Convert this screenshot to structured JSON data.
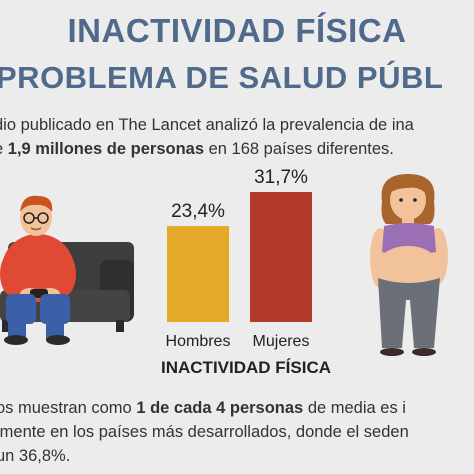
{
  "title_line1": "INACTIVIDAD FÍSICA",
  "title_line2": "PROBLEMA DE SALUD PÚBL",
  "intro": {
    "line1": "dio publicado en The Lancet analizó la prevalencia de ina",
    "line2_pre": "e ",
    "line2_bold": "1,9 millones de personas",
    "line2_post": " en 168 países diferentes."
  },
  "chart_data": {
    "type": "bar",
    "categories": [
      "Hombres",
      "Mujeres"
    ],
    "values": [
      23.4,
      31.7
    ],
    "value_labels": [
      "23,4%",
      "31,7%"
    ],
    "colors": [
      "#e5a92a",
      "#b33a2b"
    ],
    "xlabel": "INACTIVIDAD FÍSICA",
    "ylim": [
      0,
      31.7
    ]
  },
  "outro": {
    "line1_pre": "os muestran como ",
    "line1_bold": "1 de cada 4 personas",
    "line1_post": " de media es i",
    "line2": "lmente en los países más desarrollados, donde el seden",
    "line3": " un 36,8%."
  },
  "illustrations": {
    "man": "man-on-sofa-illustration",
    "woman": "overweight-woman-illustration"
  }
}
